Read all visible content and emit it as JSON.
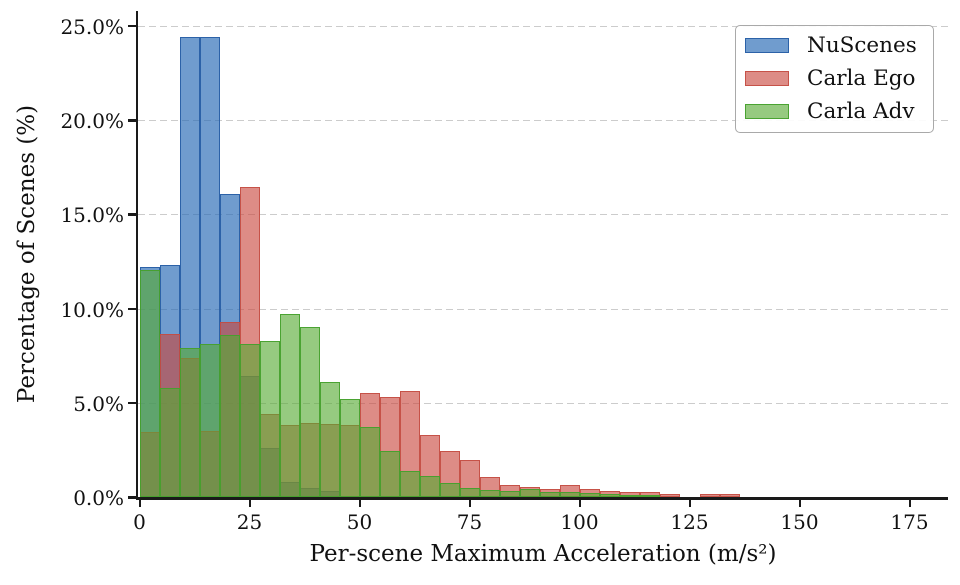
{
  "chart_data": {
    "type": "bar",
    "subtype": "overlapping-histogram",
    "title": "",
    "xlabel": "Per-scene Maximum Acceleration (m/s²)",
    "ylabel": "Percentage of Scenes (%)",
    "bin_start": 0,
    "bin_width": 4.55,
    "xlim": [
      0,
      183
    ],
    "ylim": [
      0,
      25.7
    ],
    "x_ticks": [
      0,
      25,
      50,
      75,
      100,
      125,
      150,
      175
    ],
    "y_ticks": [
      {
        "value": 0,
        "label": "0.0%"
      },
      {
        "value": 5,
        "label": "5.0%"
      },
      {
        "value": 10,
        "label": "10.0%"
      },
      {
        "value": 15,
        "label": "15.0%"
      },
      {
        "value": 20,
        "label": "20.0%"
      },
      {
        "value": 25,
        "label": "25.0%"
      }
    ],
    "grid": {
      "axis": "y",
      "style": "dashed",
      "color": "#cccccc",
      "values": [
        5,
        10,
        15,
        20,
        25
      ]
    },
    "legend_position": "upper-right",
    "series": [
      {
        "name": "NuScenes",
        "fill": "rgba(38,104,181,0.66)",
        "edge": "rgba(40,95,165,0.95)",
        "values": [
          12.2,
          12.3,
          24.4,
          24.4,
          16.1,
          6.4,
          2.6,
          0.8,
          0.5,
          0.3,
          0,
          0,
          0,
          0,
          0,
          0,
          0,
          0,
          0,
          0,
          0,
          0,
          0,
          0,
          0,
          0,
          0,
          0,
          0,
          0
        ]
      },
      {
        "name": "Carla Ego",
        "fill": "rgba(200,70,60,0.62)",
        "edge": "rgba(195,75,65,0.9)",
        "values": [
          3.45,
          8.65,
          7.4,
          3.5,
          9.3,
          16.45,
          4.4,
          3.8,
          3.9,
          3.85,
          3.8,
          5.5,
          5.3,
          5.6,
          3.3,
          2.45,
          1.95,
          1.05,
          0.65,
          0.55,
          0.45,
          0.65,
          0.45,
          0.3,
          0.28,
          0.25,
          0.17,
          0,
          0.15,
          0.15
        ]
      },
      {
        "name": "Carla Adv",
        "fill": "rgba(85,170,50,0.62)",
        "edge": "rgba(70,160,45,0.95)",
        "values": [
          12.05,
          5.8,
          7.9,
          8.1,
          8.6,
          8.1,
          8.3,
          9.7,
          9.0,
          6.1,
          5.2,
          3.7,
          2.45,
          1.4,
          1.1,
          0.75,
          0.5,
          0.35,
          0.3,
          0.4,
          0.25,
          0.25,
          0.2,
          0.15,
          0.1,
          0.1,
          0,
          0,
          0,
          0
        ]
      }
    ]
  },
  "legend": {
    "items": [
      {
        "label": "NuScenes",
        "color": "rgba(38,104,181,0.66)",
        "edge": "rgba(40,95,165,0.95)"
      },
      {
        "label": "Carla Ego",
        "color": "rgba(200,70,60,0.62)",
        "edge": "rgba(195,75,65,0.9)"
      },
      {
        "label": "Carla Adv",
        "color": "rgba(85,170,50,0.62)",
        "edge": "rgba(70,160,45,0.95)"
      }
    ]
  },
  "axes_text": {
    "xlabel": "Per-scene Maximum Acceleration (m/s²)",
    "ylabel": "Percentage of Scenes (%)"
  }
}
